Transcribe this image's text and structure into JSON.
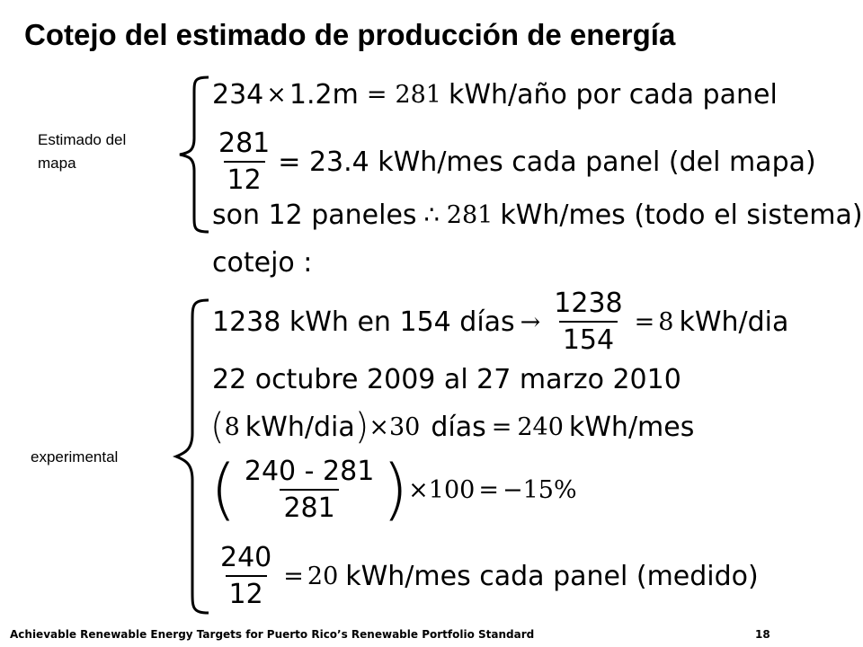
{
  "title": "Cotejo del estimado de producción de energía",
  "labels": {
    "map": "Estimado del\nmapa",
    "map_line1": "Estimado del",
    "map_line2": "mapa",
    "experimental": "experimental"
  },
  "eq1": {
    "a": "234",
    "times": "×",
    "b": "1.2m",
    "eq": "=",
    "c": "281",
    "rest": "kWh/año por cada panel"
  },
  "eq2": {
    "num": "281",
    "den": "12",
    "rest": "= 23.4 kWh/mes cada panel (del mapa)"
  },
  "eq3": {
    "pre": "son 12 paneles",
    "therefore": "∴",
    "val": "281",
    "rest": "kWh/mes (todo el sistema)"
  },
  "cotejo": "cotejo :",
  "eq4": {
    "pre": "1238 kWh en 154 días",
    "arrow": "→",
    "num": "1238",
    "den": "154",
    "eq": "=",
    "val": "8",
    "rest": "kWh/dia"
  },
  "eq5": "22 octubre 2009 al 27 marzo 2010",
  "eq6": {
    "open": "(",
    "val": "8",
    "unit": "kWh/dia",
    "close": ")",
    "times": "×",
    "days": "30",
    "dias": "días",
    "eq": "=",
    "res": "240",
    "rest": "kWh/mes"
  },
  "eq7": {
    "num": "240 - 281",
    "den": "281",
    "times": "×",
    "mult": "100",
    "eq": "=",
    "res": "−15%"
  },
  "eq8": {
    "num": "240",
    "den": "12",
    "eq": "=",
    "val": "20",
    "rest": "kWh/mes cada panel (medido)"
  },
  "footer": {
    "text": "Achievable Renewable Energy Targets for Puerto Rico’s Renewable Portfolio Standard",
    "page": "18"
  }
}
